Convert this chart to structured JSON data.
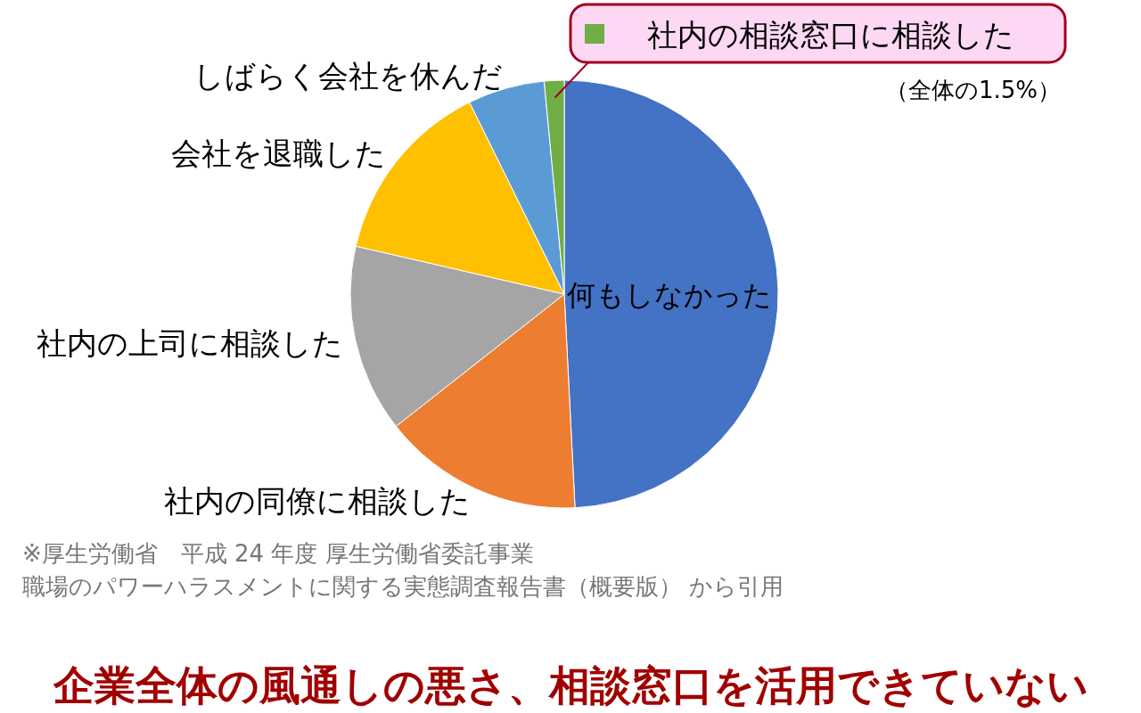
{
  "chart_data": {
    "type": "pie",
    "title": "企業全体の風通しの悪さ、相談窓口を活用できていない",
    "categories": [
      "何もしなかった",
      "社内の同僚に相談した",
      "社内の上司に相談した",
      "会社を退職した",
      "しばらく会社を休んだ",
      "社内の相談窓口に相談した"
    ],
    "values": [
      49.2,
      15.2,
      14.2,
      14.1,
      5.8,
      1.5
    ],
    "colors": [
      "#4472c4",
      "#ed7d31",
      "#a5a5a5",
      "#ffc000",
      "#5b9bd5",
      "#70ad47"
    ],
    "value_labels": [
      null,
      null,
      null,
      null,
      null,
      "（全体の1.5%）"
    ],
    "annotations": [
      "※厚生労働省　平成 24 年度 厚生労働省委託事業",
      "職場のパワーハラスメントに関する実態調査報告書（概要版） から引用"
    ]
  }
}
